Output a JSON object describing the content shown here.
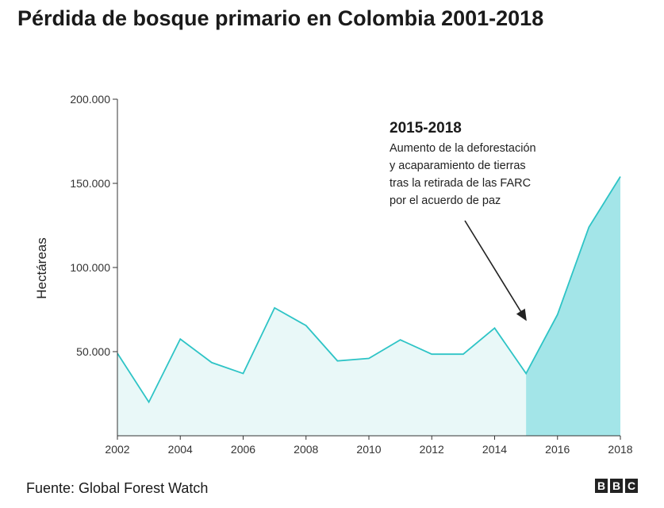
{
  "title": "Pérdida de bosque primario en Colombia 2001-2018",
  "source": "Fuente: Global Forest Watch",
  "logo": [
    "B",
    "B",
    "C"
  ],
  "colors": {
    "line": "#2ec4c6",
    "fill_base": "#e9f8f8",
    "fill_highlight": "#a3e5e8",
    "axis": "#333333"
  },
  "chart_data": {
    "type": "area",
    "ylabel": "Hectáreas",
    "xlabel": "",
    "x": [
      2002,
      2003,
      2004,
      2005,
      2006,
      2007,
      2008,
      2009,
      2010,
      2011,
      2012,
      2013,
      2014,
      2015,
      2016,
      2017,
      2018
    ],
    "series": [
      {
        "values": [
          49000,
          20000,
          57500,
          43500,
          37000,
          76000,
          65500,
          44500,
          46000,
          57000,
          48500,
          48500,
          64000,
          37000,
          72000,
          124000,
          154000
        ]
      }
    ],
    "highlight_range": [
      2015,
      2018
    ],
    "xlim": [
      2002,
      2018
    ],
    "ylim": [
      0,
      200000
    ],
    "x_ticks": [
      2002,
      2004,
      2006,
      2008,
      2010,
      2012,
      2014,
      2016,
      2018
    ],
    "x_tick_labels": [
      "2002",
      "2004",
      "2006",
      "2008",
      "2010",
      "2012",
      "2014",
      "2016",
      "2018"
    ],
    "y_ticks": [
      50000,
      100000,
      150000,
      200000
    ],
    "y_tick_labels": [
      "50.000",
      "100.000",
      "150.000",
      "200.000"
    ],
    "grid": false,
    "annotation": {
      "title": "2015-2018",
      "lines": [
        "Aumento de la deforestación",
        "y acaparamiento de tierras",
        "tras la retirada de las FARC",
        "por el acuerdo de paz"
      ]
    }
  }
}
